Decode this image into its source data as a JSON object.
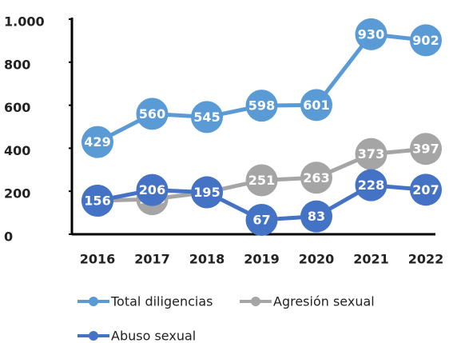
{
  "chart_data": {
    "type": "line",
    "categories": [
      "2016",
      "2017",
      "2018",
      "2019",
      "2020",
      "2021",
      "2022"
    ],
    "series": [
      {
        "name": "Total diligencias",
        "color": "#5b9bd5",
        "values": [
          429,
          560,
          545,
          598,
          601,
          930,
          902
        ]
      },
      {
        "name": "Agresión sexual",
        "color": "#a5a5a5",
        "values": [
          156,
          163,
          195,
          251,
          263,
          373,
          397
        ]
      },
      {
        "name": "Abuso sexual",
        "color": "#4472c4",
        "values": [
          156,
          206,
          195,
          67,
          83,
          228,
          207
        ]
      }
    ],
    "ylim": [
      0,
      1000
    ],
    "yticks": [
      0,
      200,
      400,
      600,
      800,
      {
        "value": 1000,
        "label": "1.000"
      }
    ],
    "grid": false
  }
}
